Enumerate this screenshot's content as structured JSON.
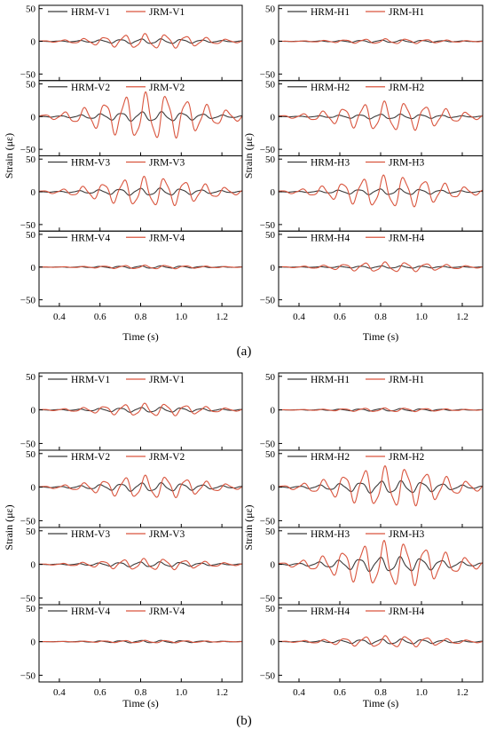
{
  "parts": [
    {
      "caption": "(a)",
      "columns": [
        {
          "ylabel": "Strain (με)",
          "xlabel": "Time (s)",
          "panels": [
            {
              "legend": [
                "HRM-V1",
                "JRM-V1"
              ],
              "hrm_amp": 4,
              "jrm_amp": 12,
              "phase": 0.2
            },
            {
              "legend": [
                "HRM-V2",
                "JRM-V2"
              ],
              "hrm_amp": 8,
              "jrm_amp": 38,
              "phase": 0.0
            },
            {
              "legend": [
                "HRM-V3",
                "JRM-V3"
              ],
              "hrm_amp": 6,
              "jrm_amp": 24,
              "phase": 0.5
            },
            {
              "legend": [
                "HRM-V4",
                "JRM-V4"
              ],
              "hrm_amp": 2,
              "jrm_amp": 3,
              "phase": 0.3
            }
          ]
        },
        {
          "ylabel": "Strain (με)",
          "xlabel": "Time (s)",
          "panels": [
            {
              "legend": [
                "HRM-H1",
                "JRM-H1"
              ],
              "hrm_amp": 2,
              "jrm_amp": 4,
              "phase": 0.1
            },
            {
              "legend": [
                "HRM-H2",
                "JRM-H2"
              ],
              "hrm_amp": 4,
              "jrm_amp": 24,
              "phase": 0.4
            },
            {
              "legend": [
                "HRM-H3",
                "JRM-H3"
              ],
              "hrm_amp": 5,
              "jrm_amp": 26,
              "phase": 0.7
            },
            {
              "legend": [
                "HRM-H4",
                "JRM-H4"
              ],
              "hrm_amp": 2,
              "jrm_amp": 8,
              "phase": 0.2
            }
          ]
        }
      ]
    },
    {
      "caption": "(b)",
      "columns": [
        {
          "ylabel": "Strain (με)",
          "xlabel": "Time (s)",
          "panels": [
            {
              "legend": [
                "HRM-V1",
                "JRM-V1"
              ],
              "hrm_amp": 4,
              "jrm_amp": 10,
              "phase": 0.3
            },
            {
              "legend": [
                "HRM-V2",
                "JRM-V2"
              ],
              "hrm_amp": 7,
              "jrm_amp": 18,
              "phase": 0.1
            },
            {
              "legend": [
                "HRM-V3",
                "JRM-V3"
              ],
              "hrm_amp": 4,
              "jrm_amp": 9,
              "phase": 0.6
            },
            {
              "legend": [
                "HRM-V4",
                "JRM-V4"
              ],
              "hrm_amp": 2,
              "jrm_amp": 2,
              "phase": 0.2
            }
          ]
        },
        {
          "ylabel": "Strain (με)",
          "xlabel": "Time (s)",
          "panels": [
            {
              "legend": [
                "HRM-H1",
                "JRM-H1"
              ],
              "hrm_amp": 2,
              "jrm_amp": 3,
              "phase": 0.4
            },
            {
              "legend": [
                "HRM-H2",
                "JRM-H2"
              ],
              "hrm_amp": 10,
              "jrm_amp": 32,
              "phase": 0.2
            },
            {
              "legend": [
                "HRM-H3",
                "JRM-H3"
              ],
              "hrm_amp": 12,
              "jrm_amp": 36,
              "phase": 0.5
            },
            {
              "legend": [
                "HRM-H4",
                "JRM-H4"
              ],
              "hrm_amp": 4,
              "jrm_amp": 9,
              "phase": 0.1
            }
          ]
        }
      ]
    }
  ],
  "chart_data": {
    "type": "line",
    "xlim": [
      0.3,
      1.3
    ],
    "ylim": [
      -60,
      55
    ],
    "xticks": [
      0.4,
      0.6,
      0.8,
      1.0,
      1.2
    ],
    "yticks": [
      -50,
      0,
      50
    ],
    "xlabel": "Time (s)",
    "ylabel": "Strain (με)",
    "colors": {
      "HRM": "#3a3a3a",
      "JRM": "#d9553e"
    },
    "signal": {
      "frequency_hz": 10,
      "envelope_peak_s": 0.85
    }
  }
}
